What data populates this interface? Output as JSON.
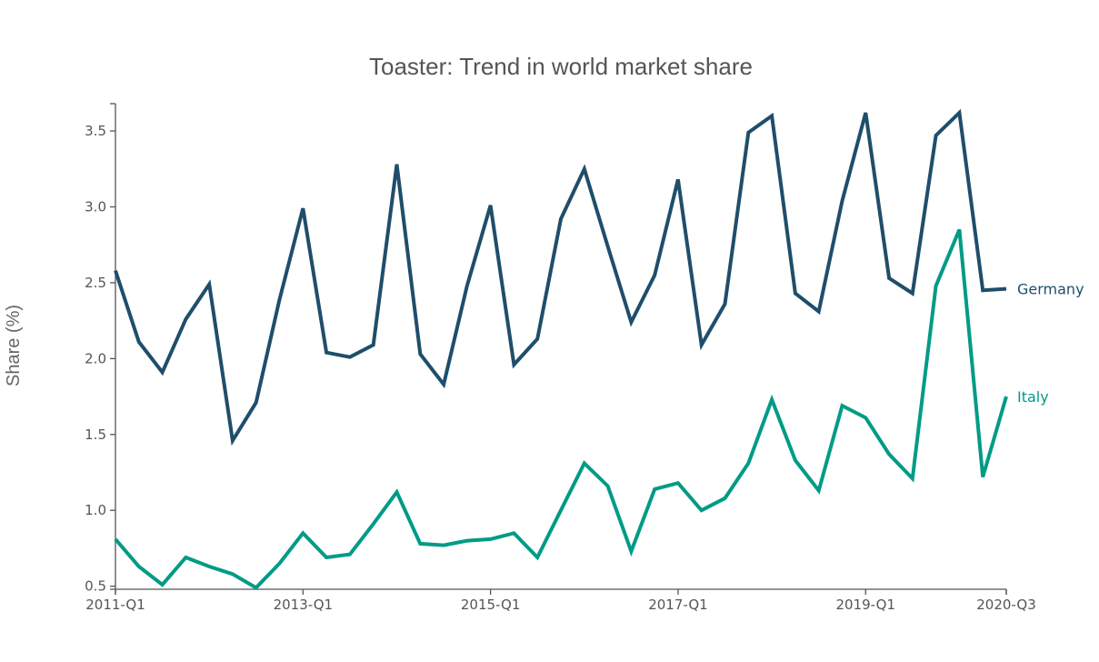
{
  "chart_data": {
    "type": "line",
    "title": "Toaster: Trend in world market share",
    "xlabel": "",
    "ylabel": "Share (%)",
    "x": [
      "2011-Q1",
      "2011-Q2",
      "2011-Q3",
      "2011-Q4",
      "2012-Q1",
      "2012-Q2",
      "2012-Q3",
      "2012-Q4",
      "2013-Q1",
      "2013-Q2",
      "2013-Q3",
      "2013-Q4",
      "2014-Q1",
      "2014-Q2",
      "2014-Q3",
      "2014-Q4",
      "2015-Q1",
      "2015-Q2",
      "2015-Q3",
      "2015-Q4",
      "2016-Q1",
      "2016-Q2",
      "2016-Q3",
      "2016-Q4",
      "2017-Q1",
      "2017-Q2",
      "2017-Q3",
      "2017-Q4",
      "2018-Q1",
      "2018-Q2",
      "2018-Q3",
      "2018-Q4",
      "2019-Q1",
      "2019-Q2",
      "2019-Q3",
      "2019-Q4",
      "2020-Q1",
      "2020-Q2",
      "2020-Q3"
    ],
    "x_ticks": [
      "2011-Q1",
      "2013-Q1",
      "2015-Q1",
      "2017-Q1",
      "2019-Q1",
      "2020-Q3"
    ],
    "y_ticks": [
      0.5,
      1.0,
      1.5,
      2.0,
      2.5,
      3.0,
      3.5
    ],
    "y_tick_labels": [
      "0.5",
      "1.0",
      "1.5",
      "2.0",
      "2.5",
      "3.0",
      "3.5"
    ],
    "ylim": [
      0.48,
      3.68
    ],
    "grid": false,
    "legend": "end-of-line labels",
    "series": [
      {
        "name": "Germany",
        "color": "#1f4e6b",
        "values": [
          2.58,
          2.11,
          1.91,
          2.26,
          2.49,
          1.46,
          1.71,
          2.39,
          2.99,
          2.04,
          2.01,
          2.09,
          3.28,
          2.03,
          1.83,
          2.48,
          3.01,
          1.96,
          2.13,
          2.92,
          3.25,
          2.74,
          2.24,
          2.55,
          3.18,
          2.09,
          2.36,
          3.49,
          3.6,
          2.43,
          2.31,
          3.04,
          3.62,
          2.53,
          2.43,
          3.47,
          3.62,
          2.45,
          2.46
        ]
      },
      {
        "name": "Italy",
        "color": "#009b87",
        "values": [
          0.81,
          0.63,
          0.51,
          0.69,
          0.63,
          0.58,
          0.49,
          0.65,
          0.85,
          0.69,
          0.71,
          0.91,
          1.12,
          0.78,
          0.77,
          0.8,
          0.81,
          0.85,
          0.69,
          1.0,
          1.31,
          1.16,
          0.73,
          1.14,
          1.18,
          1.0,
          1.08,
          1.31,
          1.73,
          1.33,
          1.13,
          1.69,
          1.61,
          1.37,
          1.21,
          2.48,
          2.85,
          1.22,
          1.75
        ]
      }
    ]
  }
}
